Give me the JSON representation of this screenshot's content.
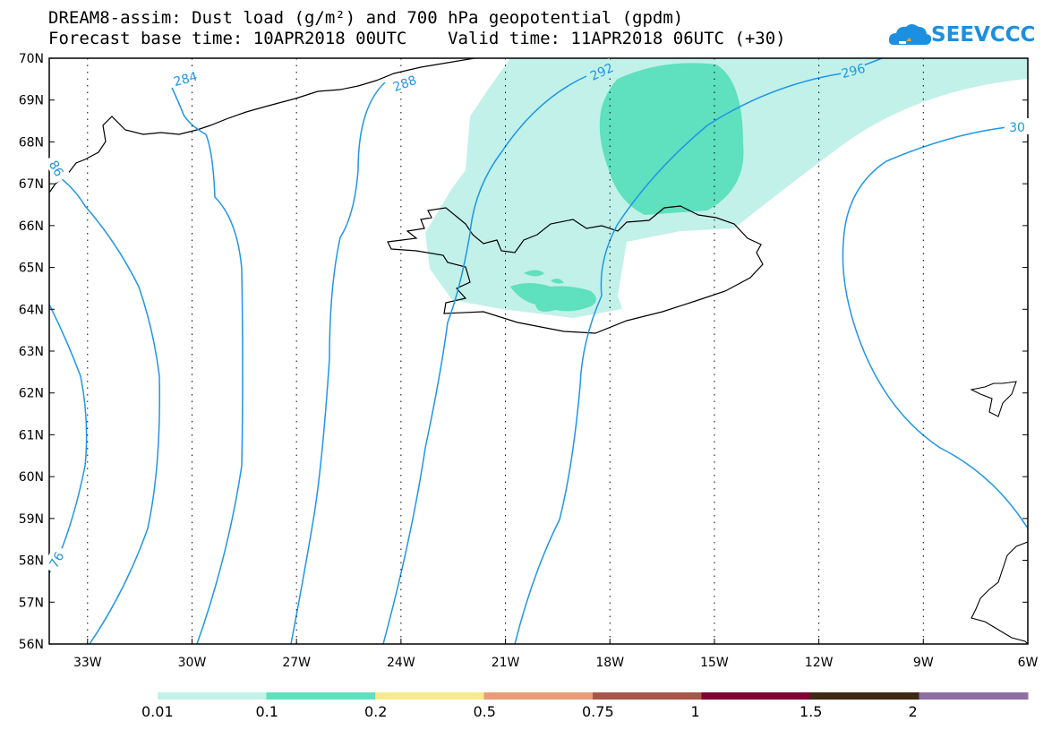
{
  "header": {
    "line1": "DREAM8-assim: Dust load (g/m²) and 700 hPa geopotential (gpdm)",
    "line2": "Forecast base time: 10APR2018 00UTC    Valid time: 11APR2018 06UTC (+30)"
  },
  "logo": {
    "text": "SEEVCCC",
    "icon": "cloud-icon"
  },
  "axes": {
    "lat_labels": [
      "70N",
      "69N",
      "68N",
      "67N",
      "66N",
      "65N",
      "64N",
      "63N",
      "62N",
      "61N",
      "60N",
      "59N",
      "58N",
      "57N",
      "56N"
    ],
    "lon_labels": [
      "33W",
      "30W",
      "27W",
      "24W",
      "21W",
      "18W",
      "15W",
      "12W",
      "9W",
      "6W"
    ],
    "lat_range": [
      56,
      70
    ],
    "lon_range": [
      -34.1,
      -6
    ]
  },
  "contour_labels": [
    "284",
    "288",
    "292",
    "296",
    "30",
    "86",
    "76"
  ],
  "colorbar": {
    "labels": [
      "0.01",
      "0.1",
      "0.2",
      "0.5",
      "0.75",
      "1",
      "1.5",
      "2"
    ],
    "colors": [
      "#c2f1ea",
      "#5fe0be",
      "#f6ea8a",
      "#ea9b78",
      "#a8564a",
      "#820033",
      "#3d2a14",
      "#8f6f9f"
    ]
  },
  "colors": {
    "contour": "#1f96e6",
    "coast": "#000000",
    "dust_low": "#c2f1ea",
    "dust_mid": "#5fe0be"
  }
}
